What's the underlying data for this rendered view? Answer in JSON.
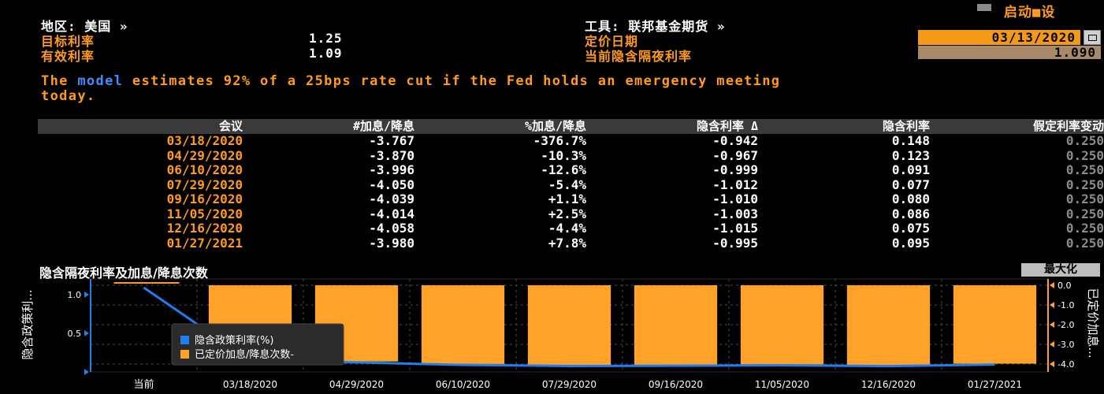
{
  "header": {
    "region_label": "地区: 美国 »",
    "tool_label": "工具: 联邦基金期货 »",
    "launch_label": "启动■设",
    "target_rate_label": "目标利率",
    "target_rate_value": "1.25",
    "effective_rate_label": "有效利率",
    "effective_rate_value": "1.09",
    "pricing_date_label": "定价日期",
    "pricing_date_value": "03/13/2020",
    "implied_overnight_label": "当前隐含隔夜利率",
    "implied_overnight_value": "1.090"
  },
  "message": {
    "line1_pre": "The ",
    "line1_link": "model",
    "line1_post": " estimates 92% of a 25bps rate cut if the Fed holds an emergency meeting",
    "line2": "today."
  },
  "table": {
    "columns": [
      "会议",
      "#加息/降息",
      "%加息/降息",
      "隐含利率 Δ",
      "隐含利率",
      "假定利率变动"
    ],
    "rows": [
      {
        "meeting": "03/18/2020",
        "num": "-3.767",
        "pct": "-376.7%",
        "delta": "-0.942",
        "rate": "0.148",
        "assumed": "0.250"
      },
      {
        "meeting": "04/29/2020",
        "num": "-3.870",
        "pct": "-10.3%",
        "delta": "-0.967",
        "rate": "0.123",
        "assumed": "0.250"
      },
      {
        "meeting": "06/10/2020",
        "num": "-3.996",
        "pct": "-12.6%",
        "delta": "-0.999",
        "rate": "0.091",
        "assumed": "0.250"
      },
      {
        "meeting": "07/29/2020",
        "num": "-4.050",
        "pct": "-5.4%",
        "delta": "-1.012",
        "rate": "0.077",
        "assumed": "0.250"
      },
      {
        "meeting": "09/16/2020",
        "num": "-4.039",
        "pct": "+1.1%",
        "delta": "-1.010",
        "rate": "0.080",
        "assumed": "0.250"
      },
      {
        "meeting": "11/05/2020",
        "num": "-4.014",
        "pct": "+2.5%",
        "delta": "-1.003",
        "rate": "0.086",
        "assumed": "0.250"
      },
      {
        "meeting": "12/16/2020",
        "num": "-4.058",
        "pct": "-4.4%",
        "delta": "-1.015",
        "rate": "0.075",
        "assumed": "0.250"
      },
      {
        "meeting": "01/27/2021",
        "num": "-3.980",
        "pct": "+7.8%",
        "delta": "-0.995",
        "rate": "0.095",
        "assumed": "0.250"
      }
    ]
  },
  "chart_title": "隐含隔夜利率及加息/降息次数",
  "maximize_label": "最大化",
  "chart_data": {
    "type": "bar",
    "categories": [
      "当前",
      "03/18/2020",
      "04/29/2020",
      "06/10/2020",
      "07/29/2020",
      "09/16/2020",
      "11/05/2020",
      "12/16/2020",
      "01/27/2021"
    ],
    "series": [
      {
        "name": "隐含政策利率(%)",
        "type": "line",
        "axis": "left",
        "color": "#1f7ff0",
        "values": [
          1.09,
          0.148,
          0.123,
          0.091,
          0.077,
          0.08,
          0.086,
          0.075,
          0.095
        ]
      },
      {
        "name": "已定价加息/降息次数",
        "type": "bar",
        "axis": "right",
        "color": "#ffa22a",
        "values": [
          null,
          -3.767,
          -3.87,
          -3.996,
          -4.05,
          -4.039,
          -4.014,
          -4.058,
          -3.98
        ]
      }
    ],
    "ylabel_left": "隐含政策利...",
    "ylabel_right": "已定价加息...",
    "left_ticks": [
      "1.0",
      "0.5"
    ],
    "right_ticks": [
      "0.0",
      "-1.0",
      "-2.0",
      "-3.0",
      "-4.0"
    ],
    "ylim_left": [
      0,
      1.1
    ],
    "ylim_right": [
      -4.0,
      0.0
    ],
    "legend": [
      "隐含政策利率(%)",
      "已定价加息/降息次数-"
    ]
  }
}
